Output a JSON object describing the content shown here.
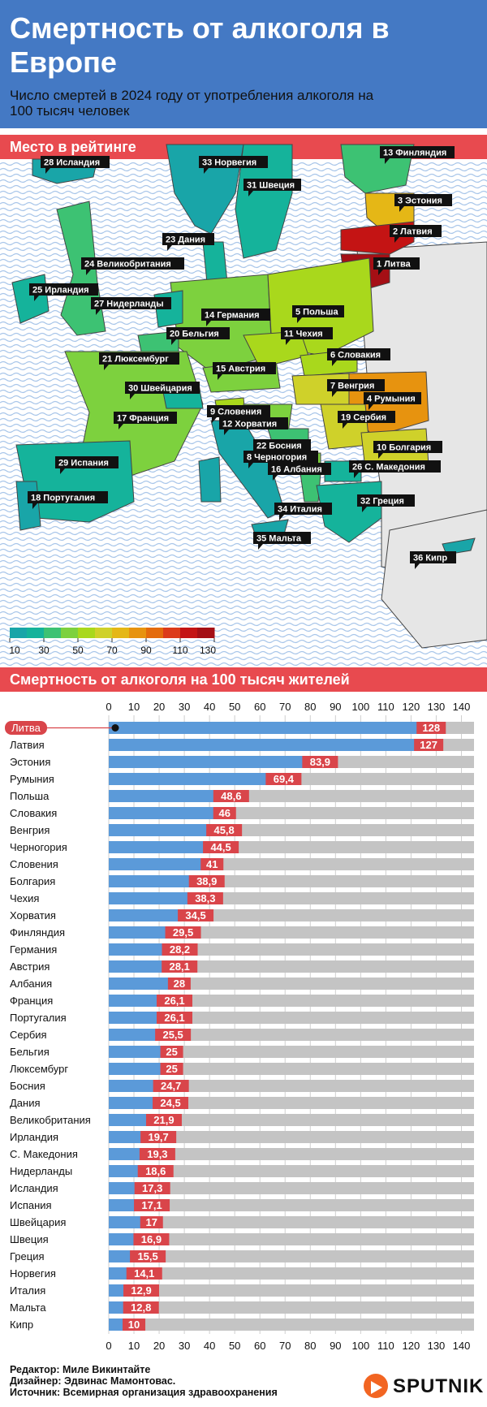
{
  "header": {
    "title": "Смертность от алкоголя в Европе",
    "subtitle": "Число смертей в 2024 году от употребления алкоголя на 100 тысяч человек"
  },
  "map_section": {
    "title": "Место в рейтинге"
  },
  "map_labels": [
    "28 Исландия",
    "33 Норвегия",
    "13 Финляндия",
    "31 Швеция",
    "3 Эстония",
    "2 Латвия",
    "1 Литва",
    "23 Дания",
    "24 Великобритания",
    "25 Ирландия",
    "27 Нидерланды",
    "14 Германия",
    "5 Польша",
    "20 Бельгия",
    "11 Чехия",
    "21 Люксембург",
    "6 Словакия",
    "15 Австрия",
    "30 Швейцария",
    "7 Венгрия",
    "4 Румыния",
    "9 Словения",
    "17 Франция",
    "12 Хорватия",
    "19 Сербия",
    "22 Босния",
    "10 Болгария",
    "8 Черногория",
    "29 Испания",
    "16 Албания",
    "26 С. Македония",
    "18 Португалия",
    "32 Греция",
    "34 Италия",
    "35 Мальта",
    "36 Кипр"
  ],
  "legend": {
    "ticks": [
      "10",
      "30",
      "50",
      "70",
      "90",
      "110",
      "130"
    ],
    "colors": [
      "#19a5a8",
      "#15b39b",
      "#3dc273",
      "#7dd13e",
      "#a9d81c",
      "#cfd12a",
      "#e5b716",
      "#e7930f",
      "#e46b0c",
      "#dc3b1a",
      "#c41414",
      "#a50f15"
    ]
  },
  "chart_section": {
    "title": "Смертность от алкоголя на 100 тысяч жителей"
  },
  "chart_data": {
    "type": "bar",
    "orientation": "horizontal",
    "categories": [
      "Литва",
      "Латвия",
      "Эстония",
      "Румыния",
      "Польша",
      "Словакия",
      "Венгрия",
      "Черногория",
      "Словения",
      "Болгария",
      "Чехия",
      "Хорватия",
      "Финляндия",
      "Германия",
      "Австрия",
      "Албания",
      "Франция",
      "Португалия",
      "Сербия",
      "Бельгия",
      "Люксембург",
      "Босния",
      "Дания",
      "Великобритания",
      "Ирландия",
      "С. Македония",
      "Нидерланды",
      "Исландия",
      "Испания",
      "Швейцария",
      "Швеция",
      "Греция",
      "Норвегия",
      "Италия",
      "Мальта",
      "Кипр"
    ],
    "values": [
      128,
      127,
      83.9,
      69.4,
      48.6,
      46,
      45.8,
      44.5,
      41,
      38.9,
      38.3,
      34.5,
      29.5,
      28.2,
      28.1,
      28,
      26.1,
      26.1,
      25.5,
      25,
      25,
      24.7,
      24.5,
      21.9,
      19.7,
      19.3,
      18.6,
      17.3,
      17.1,
      17,
      16.9,
      15.5,
      14.1,
      12.9,
      12.8,
      10
    ],
    "value_labels": [
      "128",
      "127",
      "83,9",
      "69,4",
      "48,6",
      "46",
      "45,8",
      "44,5",
      "41",
      "38,9",
      "38,3",
      "34,5",
      "29,5",
      "28,2",
      "28,1",
      "28",
      "26,1",
      "26,1",
      "25,5",
      "25",
      "25",
      "24,7",
      "24,5",
      "21,9",
      "19,7",
      "19,3",
      "18,6",
      "17,3",
      "17,1",
      "17",
      "16,9",
      "15,5",
      "14,1",
      "12,9",
      "12,8",
      "10"
    ],
    "highlight": "Литва",
    "xlim": [
      0,
      145
    ],
    "xticks": [
      0,
      10,
      20,
      30,
      40,
      50,
      60,
      70,
      80,
      90,
      100,
      110,
      120,
      130,
      140
    ],
    "colors": {
      "bar": "#5b9ad9",
      "label_box": "#d9454a",
      "background_bar": "#c4c4c4"
    }
  },
  "footer": {
    "editor": "Редактор: Миле Викинтайте",
    "designer": "Дизайнер: Эдвинас Мамонтовас.",
    "source": "Источник: Всемирная организация здравоохранения"
  },
  "brand": {
    "name": "SPUTNIK",
    "icon": "sputnik-logo-icon"
  }
}
